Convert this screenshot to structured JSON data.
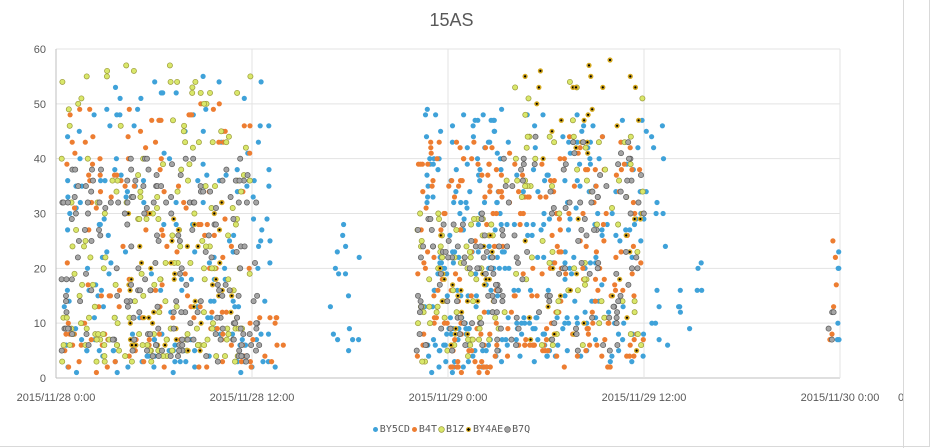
{
  "chart_data": {
    "type": "scatter",
    "title": "15AS",
    "xlabel": "",
    "ylabel": "",
    "ylim": [
      0,
      60
    ],
    "yticks": [
      "0",
      "10",
      "20",
      "30",
      "40",
      "50",
      "60"
    ],
    "xticks": [
      "2015/11/28 0:00",
      "2015/11/28 12:00",
      "2015/11/29 0:00",
      "2015/11/29 12:00",
      "2015/11/30 0:00"
    ],
    "xtick_overflow_label": "00",
    "grid": true,
    "legend_position": "bottom",
    "series": [
      {
        "name": "BY5CD",
        "color": "#3fa2d9",
        "outline": "none",
        "center": "none",
        "clusters": [
          {
            "x0": 0.02,
            "x1": 0.56,
            "y": [
              [
                1,
                9
              ],
              [
                10,
                30
              ],
              [
                31,
                55
              ]
            ],
            "n": 190
          },
          {
            "x0": 0.7,
            "x1": 0.78,
            "y": [
              [
                6,
                35
              ],
              [
                3,
                28
              ]
            ],
            "n": 16
          },
          {
            "x0": 0.94,
            "x1": 1.14,
            "y": [
              [
                1,
                10
              ],
              [
                10,
                32
              ],
              [
                32,
                49
              ]
            ],
            "n": 150
          },
          {
            "x0": 1.14,
            "x1": 1.56,
            "y": [
              [
                3,
                12
              ],
              [
                12,
                30
              ],
              [
                30,
                48
              ]
            ],
            "n": 170
          },
          {
            "x0": 1.56,
            "x1": 1.65,
            "y": [
              [
                5,
                22
              ]
            ],
            "n": 10
          },
          {
            "x0": 1.99,
            "x1": 2.0,
            "y": [
              [
                6,
                26
              ]
            ],
            "n": 6
          }
        ]
      },
      {
        "name": "B4T",
        "color": "#ed7d31",
        "outline": "none",
        "center": "none",
        "clusters": [
          {
            "x0": 0.02,
            "x1": 0.52,
            "y": [
              [
                1,
                10
              ],
              [
                10,
                30
              ],
              [
                30,
                50
              ]
            ],
            "n": 150
          },
          {
            "x0": 0.52,
            "x1": 0.6,
            "y": [
              [
                1,
                14
              ]
            ],
            "n": 8
          },
          {
            "x0": 0.92,
            "x1": 1.14,
            "y": [
              [
                1,
                10
              ],
              [
                10,
                30
              ],
              [
                30,
                43
              ]
            ],
            "n": 110
          },
          {
            "x0": 1.14,
            "x1": 1.5,
            "y": [
              [
                2,
                12
              ],
              [
                12,
                30
              ],
              [
                30,
                45
              ]
            ],
            "n": 140
          },
          {
            "x0": 1.97,
            "x1": 2.0,
            "y": [
              [
                7,
                26
              ]
            ],
            "n": 6
          }
        ]
      },
      {
        "name": "B1Z",
        "color": "#d9e76a",
        "outline": "#9a9a3a",
        "center": "none",
        "clusters": [
          {
            "x0": 0.01,
            "x1": 0.5,
            "y": [
              [
                2,
                10
              ],
              [
                10,
                30
              ],
              [
                30,
                58
              ]
            ],
            "n": 180
          },
          {
            "x0": 0.92,
            "x1": 1.14,
            "y": [
              [
                3,
                30
              ]
            ],
            "n": 60
          },
          {
            "x0": 1.14,
            "x1": 1.5,
            "y": [
              [
                5,
                30
              ],
              [
                30,
                54
              ]
            ],
            "n": 70
          }
        ]
      },
      {
        "name": "BY4AE",
        "color": "#d4a81f",
        "outline": "none",
        "center": "#000000",
        "clusters": [
          {
            "x0": 0.18,
            "x1": 0.45,
            "y": [
              [
                4,
                34
              ]
            ],
            "n": 45
          },
          {
            "x0": 0.97,
            "x1": 1.12,
            "y": [
              [
                5,
                28
              ]
            ],
            "n": 25
          },
          {
            "x0": 1.17,
            "x1": 1.5,
            "y": [
              [
                5,
                30
              ],
              [
                40,
                58
              ]
            ],
            "n": 45
          }
        ]
      },
      {
        "name": "B7Q",
        "color": "#a5a5a5",
        "outline": "#5a5a5a",
        "center": "none",
        "clusters": [
          {
            "x0": 0.01,
            "x1": 0.52,
            "y": [
              [
                3,
                10
              ],
              [
                10,
                30
              ],
              [
                30,
                40
              ]
            ],
            "n": 190
          },
          {
            "x0": 0.92,
            "x1": 1.14,
            "y": [
              [
                5,
                30
              ]
            ],
            "n": 75
          },
          {
            "x0": 1.14,
            "x1": 1.5,
            "y": [
              [
                4,
                30
              ],
              [
                30,
                44
              ]
            ],
            "n": 90
          },
          {
            "x0": 1.97,
            "x1": 2.0,
            "y": [
              [
                7,
                14
              ]
            ],
            "n": 4
          }
        ]
      }
    ]
  }
}
